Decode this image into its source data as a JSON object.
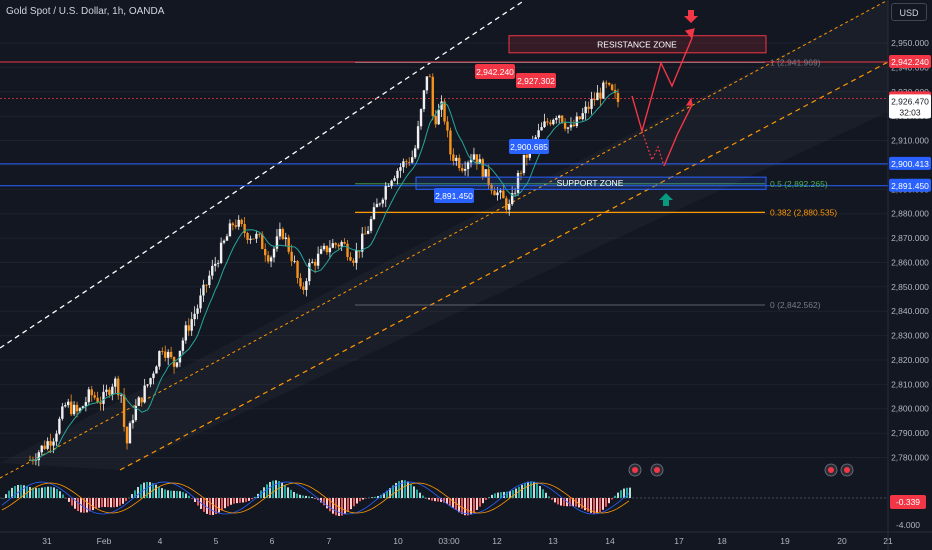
{
  "header": {
    "title": "Gold Spot / U.S. Dollar, 1h, OANDA",
    "currency_button": "USD"
  },
  "colors": {
    "background": "#131722",
    "bull": "#f0f0f0",
    "bear": "#f7931a",
    "resistance": "#f23645",
    "support": "#2962ff",
    "fib_382": "#ff9800",
    "fib_05": "#4caf50",
    "channel_dashed": "#ffffff",
    "channel_orange": "#ff9800",
    "ma_line": "#26a69a",
    "projection": "#f23645",
    "up_arrow": "#089981"
  },
  "chart_data": {
    "type": "candlestick",
    "symbol": "Gold Spot / U.S. Dollar",
    "interval": "1h",
    "broker": "OANDA",
    "ylim": [
      2773,
      2962
    ],
    "y_ticks": [
      2780,
      2790,
      2800,
      2810,
      2820,
      2830,
      2840,
      2850,
      2860,
      2870,
      2880,
      2890,
      2900,
      2910,
      2920,
      2930,
      2940,
      2950
    ],
    "x_ticks": [
      "31",
      "Feb",
      "4",
      "5",
      "6",
      "7",
      "10",
      "03:00",
      "12",
      "13",
      "14",
      "17",
      "18",
      "19",
      "20",
      "21"
    ],
    "price_path": [
      [
        0,
        2779
      ],
      [
        1,
        2789
      ],
      [
        1.5,
        2802
      ],
      [
        2,
        2798
      ],
      [
        2.5,
        2806
      ],
      [
        3,
        2803
      ],
      [
        3.5,
        2812
      ],
      [
        3.8,
        2806
      ],
      [
        4,
        2784
      ],
      [
        4.3,
        2798
      ],
      [
        5,
        2812
      ],
      [
        5.5,
        2826
      ],
      [
        6,
        2818
      ],
      [
        6.5,
        2832
      ],
      [
        7,
        2842
      ],
      [
        7.5,
        2855
      ],
      [
        8,
        2866
      ],
      [
        8.5,
        2877
      ],
      [
        9,
        2872
      ],
      [
        9.5,
        2870
      ],
      [
        10,
        2862
      ],
      [
        10.5,
        2873
      ],
      [
        11,
        2860
      ],
      [
        11.3,
        2846
      ],
      [
        11.6,
        2858
      ],
      [
        12,
        2862
      ],
      [
        12.5,
        2867
      ],
      [
        13,
        2868
      ],
      [
        13.5,
        2862
      ],
      [
        14,
        2872
      ],
      [
        14.5,
        2884
      ],
      [
        15,
        2895
      ],
      [
        15.5,
        2900
      ],
      [
        16,
        2904
      ],
      [
        16.4,
        2928
      ],
      [
        16.6,
        2942
      ],
      [
        16.8,
        2918
      ],
      [
        17.2,
        2924
      ],
      [
        17.5,
        2905
      ],
      [
        18,
        2900
      ],
      [
        18.5,
        2905
      ],
      [
        19,
        2895
      ],
      [
        19.5,
        2888
      ],
      [
        20,
        2882
      ],
      [
        20.3,
        2894
      ],
      [
        20.6,
        2902
      ],
      [
        21,
        2910
      ],
      [
        21.5,
        2917
      ],
      [
        22,
        2922
      ],
      [
        22.5,
        2914
      ],
      [
        23,
        2920
      ],
      [
        23.5,
        2927
      ],
      [
        24,
        2932
      ],
      [
        24.5,
        2926
      ]
    ],
    "price_levels": [
      {
        "label": "2,950.000",
        "value": 2950
      },
      {
        "label": "2,942.240",
        "value": 2942.24
      },
      {
        "label": "2,927.302",
        "value": 2927.302
      },
      {
        "label": "2,926.470",
        "value": 2926.47
      },
      {
        "label": "32:03"
      },
      {
        "label": "2,900.413",
        "value": 2900.413
      },
      {
        "label": "2,891.450",
        "value": 2891.45
      }
    ],
    "callouts": [
      {
        "label": "2,942.240",
        "value": 2942.24
      },
      {
        "label": "2,927.302",
        "value": 2927.302
      },
      {
        "label": "2,900.685",
        "value": 2900.685
      },
      {
        "label": "2,891.450",
        "value": 2891.45
      }
    ],
    "zones": [
      {
        "label": "RESISTANCE ZONE",
        "low": 2946,
        "high": 2953
      },
      {
        "label": "SUPPORT ZONE",
        "low": 2890,
        "high": 2895
      }
    ],
    "fib_levels": [
      {
        "label": "1 (2,941.969)",
        "value": 2941.969
      },
      {
        "label": "0.5 (2,892.265)",
        "value": 2892.265
      },
      {
        "label": "0.382 (2,880.535)",
        "value": 2880.535
      },
      {
        "label": "0 (2,842.562)",
        "value": 2842.562
      }
    ],
    "oscillator": {
      "current_label": "-0.339",
      "current_value": -0.339,
      "scale_label": "-4.000",
      "scale_value": -4.0
    }
  }
}
